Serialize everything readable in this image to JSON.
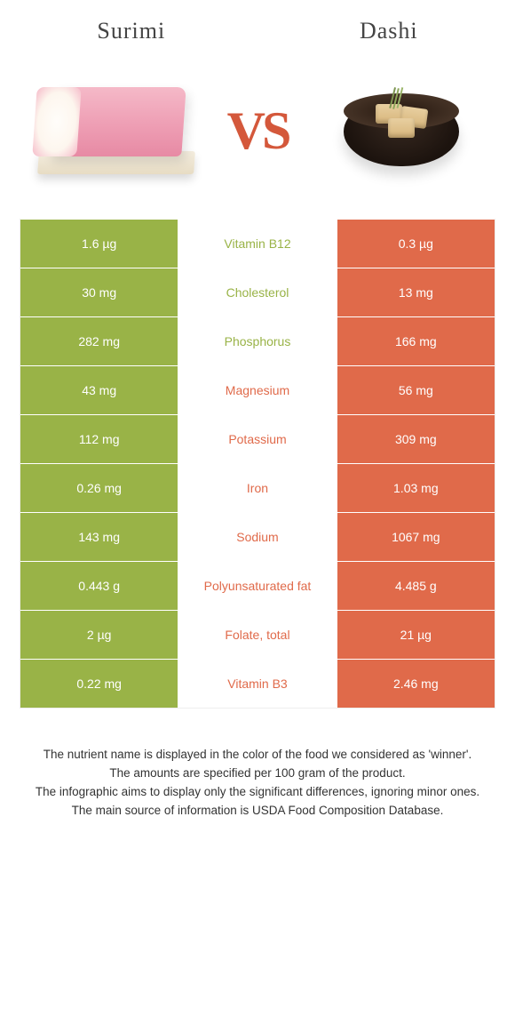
{
  "colors": {
    "left": "#99b347",
    "right": "#e06a4a",
    "mid_text_left": "#99b347",
    "mid_text_right": "#e06a4a"
  },
  "titles": {
    "left": "Surimi",
    "right": "Dashi"
  },
  "vs": "VS",
  "rows": [
    {
      "left": "1.6 µg",
      "mid": "Vitamin B12",
      "right": "0.3 µg",
      "winner": "left"
    },
    {
      "left": "30 mg",
      "mid": "Cholesterol",
      "right": "13 mg",
      "winner": "left"
    },
    {
      "left": "282 mg",
      "mid": "Phosphorus",
      "right": "166 mg",
      "winner": "left"
    },
    {
      "left": "43 mg",
      "mid": "Magnesium",
      "right": "56 mg",
      "winner": "right"
    },
    {
      "left": "112 mg",
      "mid": "Potassium",
      "right": "309 mg",
      "winner": "right"
    },
    {
      "left": "0.26 mg",
      "mid": "Iron",
      "right": "1.03 mg",
      "winner": "right"
    },
    {
      "left": "143 mg",
      "mid": "Sodium",
      "right": "1067 mg",
      "winner": "right"
    },
    {
      "left": "0.443 g",
      "mid": "Polyunsaturated fat",
      "right": "4.485 g",
      "winner": "right"
    },
    {
      "left": "2 µg",
      "mid": "Folate, total",
      "right": "21 µg",
      "winner": "right"
    },
    {
      "left": "0.22 mg",
      "mid": "Vitamin B3",
      "right": "2.46 mg",
      "winner": "right"
    }
  ],
  "footer": [
    "The nutrient name is displayed in the color of the food we considered as 'winner'.",
    "The amounts are specified per 100 gram of the product.",
    "The infographic aims to display only the significant differences, ignoring minor ones.",
    "The main source of information is USDA Food Composition Database."
  ]
}
